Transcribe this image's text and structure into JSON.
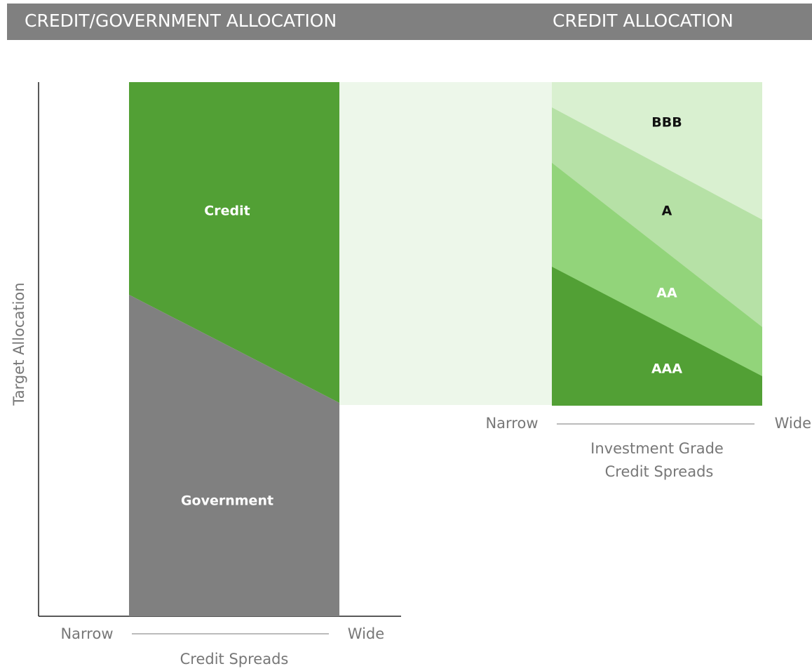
{
  "header": {
    "left_title": "CREDIT/GOVERNMENT ALLOCATION",
    "right_title": "CREDIT ALLOCATION"
  },
  "left_panel": {
    "y_axis_label": "Target Allocation",
    "x_low": "Narrow",
    "x_high": "Wide",
    "x_axis_label": "Credit Spreads",
    "regions": [
      "Credit",
      "Government"
    ]
  },
  "right_panel": {
    "x_low": "Narrow",
    "x_high": "Wide",
    "x_axis_label_line1": "Investment Grade",
    "x_axis_label_line2": "Credit Spreads",
    "regions": [
      "BBB",
      "A",
      "AA",
      "AAA"
    ]
  }
}
